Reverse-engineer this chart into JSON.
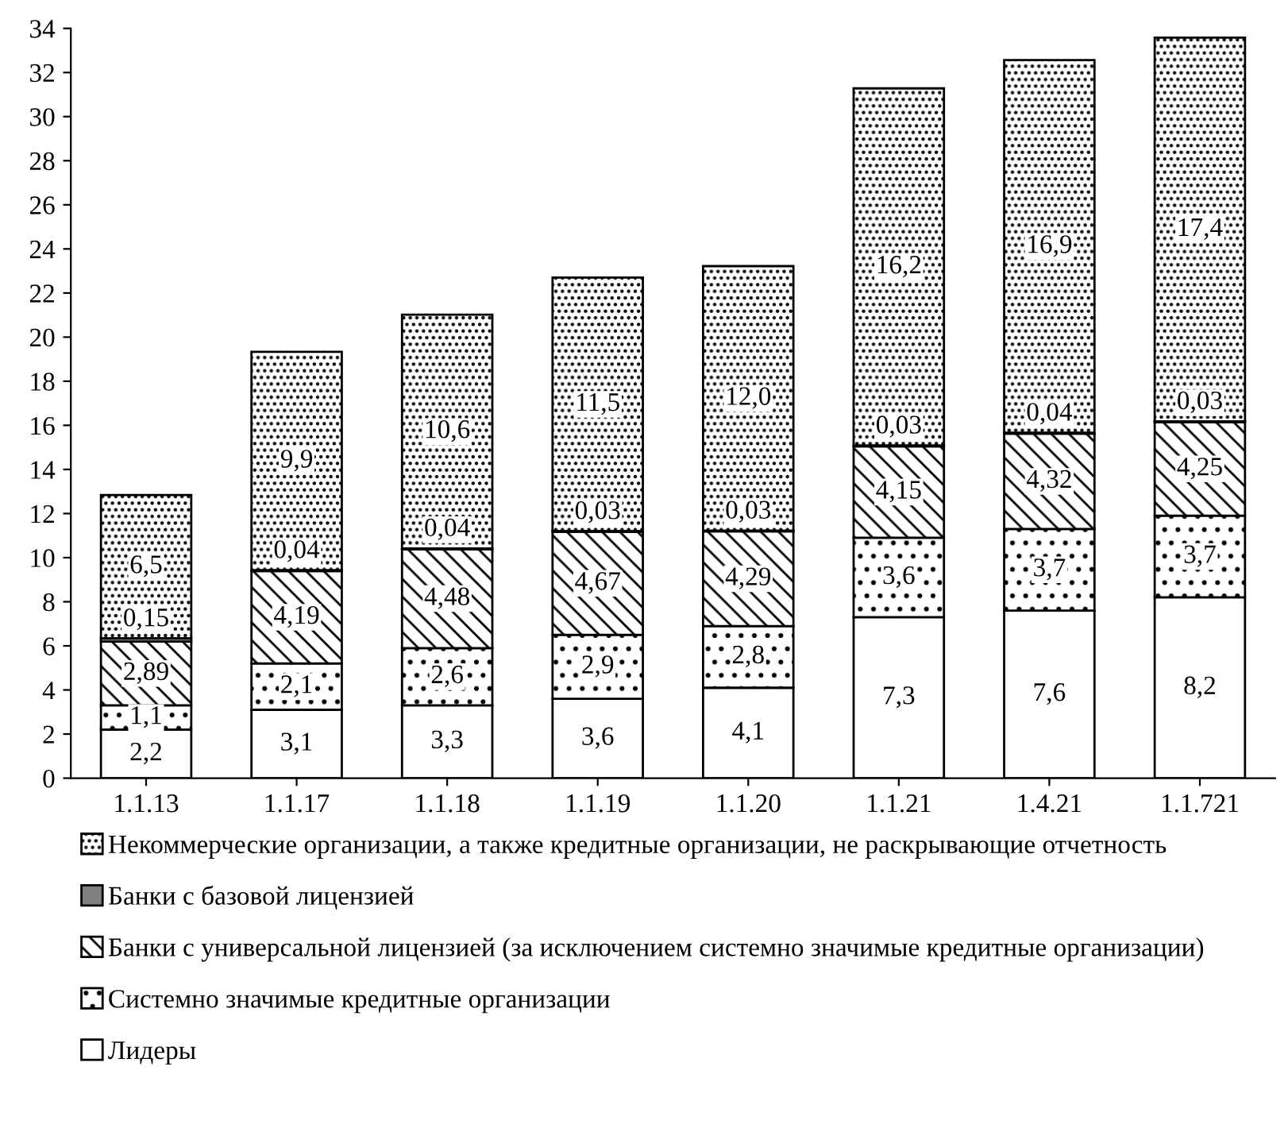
{
  "chart_data": {
    "type": "bar",
    "stacked": true,
    "categories": [
      "1.1.13",
      "1.1.17",
      "1.1.18",
      "1.1.19",
      "1.1.20",
      "1.1.21",
      "1.4.21",
      "1.1.721"
    ],
    "series": [
      {
        "name": "Лидеры",
        "color": "#ffffff",
        "values": [
          2.2,
          3.1,
          3.3,
          3.6,
          4.1,
          7.3,
          7.6,
          8.2
        ],
        "value_labels": [
          "2,2",
          "3,1",
          "3,3",
          "3,6",
          "4,1",
          "7,3",
          "7,6",
          "8,2"
        ]
      },
      {
        "name": "Системно значимые кредитные организации",
        "color": "#000000",
        "values": [
          1.1,
          2.1,
          2.6,
          2.9,
          2.8,
          3.6,
          3.7,
          3.7
        ],
        "value_labels": [
          "1,1",
          "2,1",
          "2,6",
          "2,9",
          "2,8",
          "3,6",
          "3,7",
          "3,7"
        ]
      },
      {
        "name": "Банки с универсальной лицензией (за исключением системно значимые кредитные организации)",
        "color": "#000000",
        "values": [
          2.89,
          4.19,
          4.48,
          4.67,
          4.29,
          4.15,
          4.32,
          4.25
        ],
        "value_labels": [
          "2,89",
          "4,19",
          "4,48",
          "4,67",
          "4,29",
          "4,15",
          "4,32",
          "4,25"
        ]
      },
      {
        "name": "Банки с базовой лицензией",
        "color": "#808080",
        "values": [
          0.15,
          0.04,
          0.04,
          0.03,
          0.03,
          0.03,
          0.04,
          0.03
        ],
        "value_labels": [
          "0,15",
          "0,04",
          "0,04",
          "0,03",
          "0,03",
          "0,03",
          "0,04",
          "0,03"
        ]
      },
      {
        "name": "Некоммерческие организации, а также кредитные организации, не раскрывающие отчетность",
        "color": "#000000",
        "values": [
          6.5,
          9.9,
          10.6,
          11.5,
          12.0,
          16.2,
          16.9,
          17.4
        ],
        "value_labels": [
          "6,5",
          "9,9",
          "10,6",
          "11,5",
          "12,0",
          "16,2",
          "16,9",
          "17,4"
        ]
      }
    ],
    "ylim": [
      0,
      34
    ],
    "yticks": [
      0,
      2,
      4,
      6,
      8,
      10,
      12,
      14,
      16,
      18,
      20,
      22,
      24,
      26,
      28,
      30,
      32,
      34
    ],
    "grid": false,
    "legend": "bottom"
  }
}
